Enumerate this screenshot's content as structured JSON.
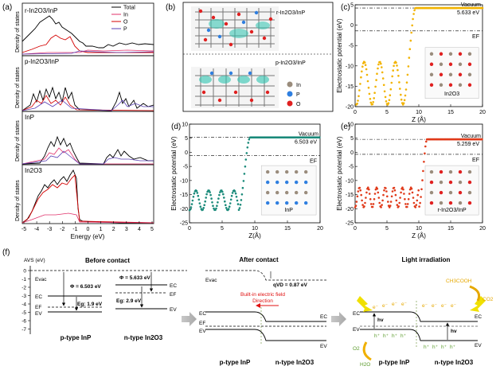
{
  "panel_a": {
    "label": "(a)",
    "xlabel": "Energy (eV)",
    "ylabel": "Density of states",
    "x_ticks": [
      "-5",
      "-4",
      "-3",
      "-2",
      "-1",
      "0",
      "1",
      "2",
      "3",
      "4",
      "5"
    ],
    "subplots": [
      {
        "name": "r-In2O3/InP",
        "legend": [
          "Total",
          "In",
          "O",
          "P"
        ]
      },
      {
        "name": "p-In2O3/InP"
      },
      {
        "name": "InP"
      },
      {
        "name": "In2O3"
      }
    ],
    "colors": {
      "total": "#000000",
      "in": "#e0306a",
      "o": "#d40000",
      "p": "#5a3fb4"
    }
  },
  "panel_b": {
    "label": "(b)",
    "top_label": "r-In2O3/InP",
    "bottom_label": "p-In2O3/InP",
    "legend": [
      "In",
      "P",
      "O"
    ],
    "legend_colors": [
      "#9a8c7c",
      "#2f7fe0",
      "#e02020"
    ]
  },
  "chart_data": [
    {
      "type": "line",
      "panel": "(c)",
      "title": "In2O3",
      "xlabel": "Z (Å)",
      "ylabel": "Electrostatic potential (eV)",
      "xlim": [
        0,
        20
      ],
      "ylim": [
        -20,
        5
      ],
      "x_ticks": [
        "0",
        "5",
        "10",
        "15",
        "20"
      ],
      "y_ticks": [
        "5",
        "0",
        "-5",
        "-10",
        "-15",
        "-20"
      ],
      "vacuum_label": "Vacuum",
      "ef_label": "EF",
      "work_function": "5.633 eV",
      "vacuum_level": 4.2,
      "fermi_level": -1.4,
      "oscillation": {
        "x_start": 0.2,
        "x_end": 7.5,
        "period": 2.45,
        "min": -19.5,
        "max": -9
      },
      "step_x": 9.5,
      "color": "#f2b300"
    },
    {
      "type": "line",
      "panel": "(d)",
      "title": "InP",
      "xlabel": "Z(Å)",
      "ylabel": "Electrostatic potential (eV)",
      "xlim": [
        0,
        20
      ],
      "ylim": [
        -25,
        10
      ],
      "x_ticks": [
        "0",
        "5",
        "10",
        "15",
        "20"
      ],
      "y_ticks": [
        "10",
        "5",
        "0",
        "-5",
        "-10",
        "-15",
        "-20",
        "-25"
      ],
      "vacuum_label": "Vacuum",
      "ef_label": "EF",
      "work_function": "6.503 eV",
      "vacuum_level": 5.3,
      "fermi_level": -1.2,
      "oscillation": {
        "x_start": 0,
        "x_end": 7.5,
        "period": 1.95,
        "min": -20.5,
        "max": -13.5
      },
      "step_x": 9.3,
      "color": "#1a8a7a"
    },
    {
      "type": "line",
      "panel": "(e)",
      "title": "r-In2O3/InP",
      "xlabel": "Z (Å)",
      "ylabel": "Electrostatic potential (eV)",
      "xlim": [
        0,
        20
      ],
      "ylim": [
        -25,
        10
      ],
      "x_ticks": [
        "0",
        "5",
        "10",
        "15",
        "20"
      ],
      "y_ticks": [
        "10",
        "5",
        "0",
        "-5",
        "-10",
        "-15",
        "-20",
        "-25"
      ],
      "vacuum_label": "Vacuum",
      "ef_label": "EF",
      "work_function": "5.259 eV",
      "vacuum_level": 4.6,
      "fermi_level": -0.7,
      "oscillation": {
        "x_start": 0,
        "x_end": 10,
        "period": 1.35,
        "min": -19.5,
        "max": -12.5
      },
      "step_x": 11.3,
      "color": "#e03a1a"
    }
  ],
  "panel_f": {
    "label": "(f)",
    "axis": "AVS (eV)",
    "y_ticks": [
      "0",
      "-1",
      "-2",
      "-3",
      "-4",
      "-5",
      "-6",
      "-7"
    ],
    "before": {
      "title": "Before contact",
      "phi_inp": "Φ = 6.503 eV",
      "phi_in2o3": "Φ = 5.633 eV",
      "eg_inp": "Eg: 1.9 eV",
      "eg_in2o3": "Eg: 2.9 eV",
      "evac": "Evac",
      "ec": "EC",
      "ef": "EF",
      "ev": "EV",
      "label_inp": "p-type InP",
      "label_in2o3": "n-type In2O3"
    },
    "after": {
      "title": "After contact",
      "evac": "Evac",
      "qvd": "qVD = 0.87 eV",
      "field": "Built-in electric field",
      "direction": "Direction",
      "ec": "EC",
      "ef": "EF",
      "ev": "EV",
      "label_inp": "p-type InP",
      "label_in2o3": "n-type In2O3"
    },
    "light": {
      "title": "Light irradiation",
      "hv": "hv",
      "electron": "e⁻",
      "hole": "h⁺",
      "o2": "O2",
      "h2o": "H2O",
      "ch3cooh": "CH3COOH",
      "co2": "CO2",
      "ec": "EC",
      "ev": "EV",
      "label_inp": "p-type InP",
      "label_in2o3": "n-type In2O3"
    }
  }
}
